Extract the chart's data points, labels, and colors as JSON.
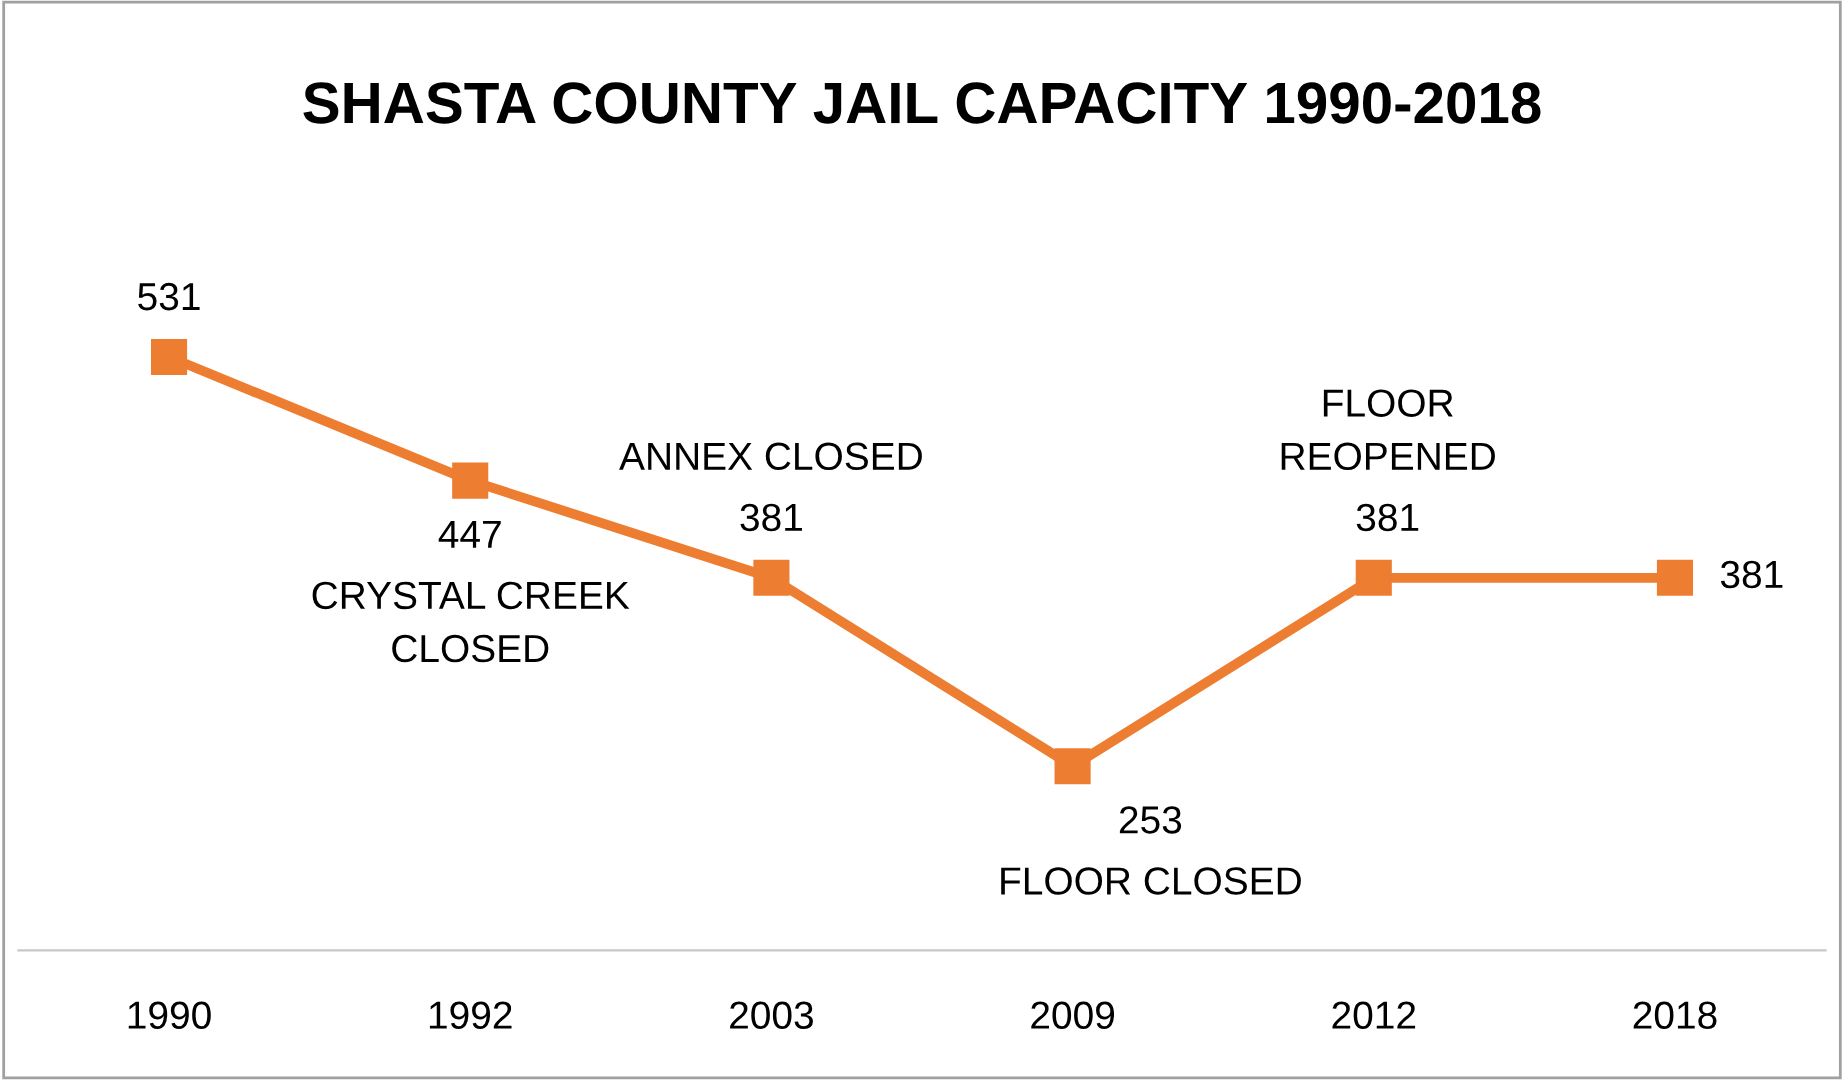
{
  "chart_data": {
    "type": "line",
    "title": "SHASTA COUNTY JAIL CAPACITY 1990-2018",
    "categories": [
      "1990",
      "1992",
      "2003",
      "2009",
      "2012",
      "2018"
    ],
    "series": [
      {
        "color": "#ed7d31",
        "values": [
          531,
          447,
          381,
          253,
          381,
          381
        ]
      }
    ],
    "data_labels": true,
    "marker": "square",
    "line_style": "solid",
    "grid": false,
    "legend": false,
    "annotations": [
      {
        "text": "CRYSTAL CREEK\nCLOSED",
        "x": "1992",
        "y": 447
      },
      {
        "text": "ANNEX CLOSED",
        "x": "2003",
        "y": 381
      },
      {
        "text": "FLOOR CLOSED",
        "x": "2009",
        "y": 253
      },
      {
        "text": "FLOOR\nREOPENED",
        "x": "2012",
        "y": 381
      }
    ]
  }
}
